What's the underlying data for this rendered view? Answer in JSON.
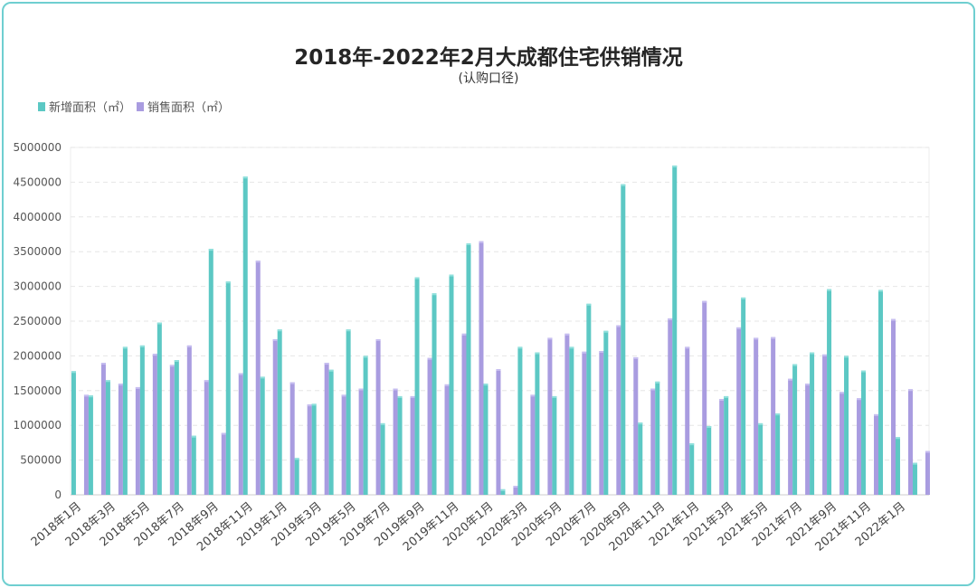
{
  "title": "2018年-2022年2月大成都住宅供销情况",
  "subtitle": "(认购口径)",
  "colors": {
    "supply": "#5cc8c4",
    "sales": "#a99ce0"
  },
  "chart_data": {
    "type": "bar",
    "categories": [
      "2018年1月",
      "2018年2月",
      "2018年3月",
      "2018年4月",
      "2018年5月",
      "2018年6月",
      "2018年7月",
      "2018年8月",
      "2018年9月",
      "2018年10月",
      "2018年11月",
      "2018年12月",
      "2019年1月",
      "2019年2月",
      "2019年3月",
      "2019年4月",
      "2019年5月",
      "2019年6月",
      "2019年7月",
      "2019年8月",
      "2019年9月",
      "2019年10月",
      "2019年11月",
      "2019年12月",
      "2020年1月",
      "2020年2月",
      "2020年3月",
      "2020年4月",
      "2020年5月",
      "2020年6月",
      "2020年7月",
      "2020年8月",
      "2020年9月",
      "2020年10月",
      "2020年11月",
      "2020年12月",
      "2021年1月",
      "2021年2月",
      "2021年3月",
      "2021年4月",
      "2021年5月",
      "2021年6月",
      "2021年7月",
      "2021年8月",
      "2021年9月",
      "2021年10月",
      "2021年11月",
      "2021年12月",
      "2022年1月",
      "2022年2月"
    ],
    "tick_labels": [
      "2018年1月",
      "",
      "2018年3月",
      "",
      "2018年5月",
      "",
      "2018年7月",
      "",
      "2018年9月",
      "",
      "2018年11月",
      "",
      "2019年1月",
      "",
      "2019年3月",
      "",
      "2019年5月",
      "",
      "2019年7月",
      "",
      "2019年9月",
      "",
      "2019年11月",
      "",
      "2020年1月",
      "",
      "2020年3月",
      "",
      "2020年5月",
      "",
      "2020年7月",
      "",
      "2020年9月",
      "",
      "2020年11月",
      "",
      "2021年1月",
      "",
      "2021年3月",
      "",
      "2021年5月",
      "",
      "2021年7月",
      "",
      "2021年9月",
      "",
      "2021年11月",
      "",
      "2022年1月",
      ""
    ],
    "series": [
      {
        "name": "新增面积（㎡）",
        "values": [
          1780000,
          1430000,
          1650000,
          2130000,
          2150000,
          2480000,
          1940000,
          850000,
          3540000,
          3070000,
          4580000,
          1700000,
          2380000,
          530000,
          1310000,
          1800000,
          2380000,
          2000000,
          1030000,
          1420000,
          3130000,
          2900000,
          3170000,
          3620000,
          1600000,
          80000,
          2130000,
          2050000,
          1420000,
          2130000,
          2750000,
          2360000,
          4470000,
          1040000,
          1630000,
          4740000,
          740000,
          990000,
          1420000,
          2840000,
          1030000,
          1170000,
          1880000,
          2050000,
          2960000,
          2000000,
          1790000,
          2950000,
          830000,
          460000
        ]
      },
      {
        "name": "销售面积（㎡）",
        "values": [
          1440000,
          1900000,
          1600000,
          1550000,
          2030000,
          1870000,
          2150000,
          1650000,
          890000,
          1750000,
          3370000,
          2240000,
          1620000,
          1300000,
          1900000,
          1440000,
          1530000,
          2240000,
          1530000,
          1420000,
          1970000,
          1590000,
          2320000,
          3650000,
          1810000,
          130000,
          1440000,
          2260000,
          2320000,
          2060000,
          2070000,
          2440000,
          1980000,
          1530000,
          2540000,
          2130000,
          2790000,
          1380000,
          2410000,
          2260000,
          2270000,
          1670000,
          1600000,
          2020000,
          1480000,
          1390000,
          1160000,
          2530000,
          1520000,
          630000
        ]
      }
    ],
    "xlabel": "",
    "ylabel": "",
    "ylim": [
      0,
      5000000
    ],
    "yticks": [
      0,
      500000,
      1000000,
      1500000,
      2000000,
      2500000,
      3000000,
      3500000,
      4000000,
      4500000,
      5000000
    ],
    "grid": true,
    "legend_position": "top-left"
  }
}
